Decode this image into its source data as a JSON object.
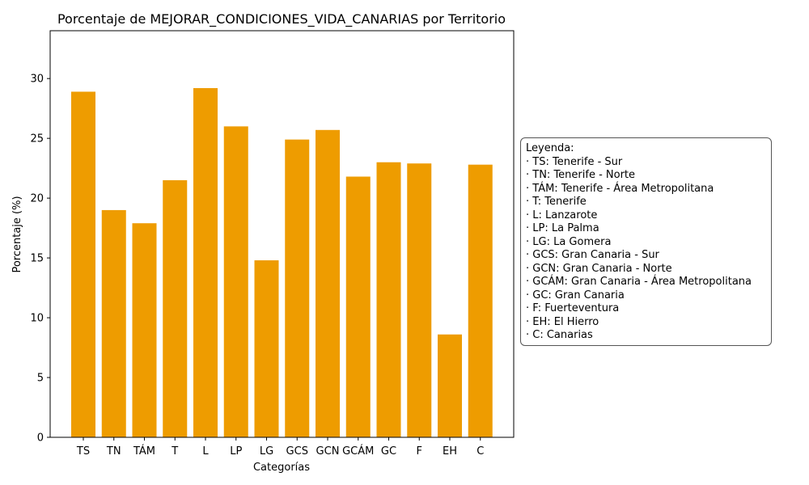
{
  "chart_data": {
    "type": "bar",
    "title": "Porcentaje de MEJORAR_CONDICIONES_VIDA_CANARIAS por Territorio",
    "xlabel": "Categorías",
    "ylabel": "Porcentaje (%)",
    "categories": [
      "TS",
      "TN",
      "TÁM",
      "T",
      "L",
      "LP",
      "LG",
      "GCS",
      "GCN",
      "GCÁM",
      "GC",
      "F",
      "EH",
      "C"
    ],
    "values": [
      28.9,
      19.0,
      17.9,
      21.5,
      29.2,
      26.0,
      14.8,
      24.9,
      25.7,
      21.8,
      23.0,
      22.9,
      8.6,
      22.8
    ],
    "ylim": [
      0,
      34
    ],
    "yticks": [
      0,
      5,
      10,
      15,
      20,
      25,
      30
    ],
    "bar_color": "#EE9C00",
    "grid": false,
    "legend": {
      "placement": "right",
      "title": "Leyenda:",
      "entries": [
        "· TS: Tenerife - Sur",
        "· TN: Tenerife - Norte",
        "· TÁM: Tenerife - Área Metropolitana",
        "· T: Tenerife",
        "· L: Lanzarote",
        "· LP: La Palma",
        "· LG: La Gomera",
        "· GCS: Gran Canaria - Sur",
        "· GCN: Gran Canaria - Norte",
        "· GCÁM: Gran Canaria - Área Metropolitana",
        "· GC: Gran Canaria",
        "· F: Fuerteventura",
        "· EH: El Hierro",
        "· C: Canarias"
      ]
    }
  }
}
